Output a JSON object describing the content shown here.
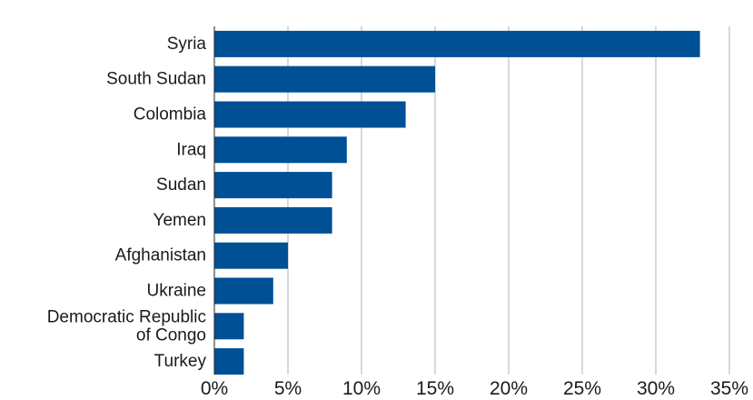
{
  "chart_data": {
    "type": "bar",
    "orientation": "horizontal",
    "categories": [
      "Syria",
      "South Sudan",
      "Colombia",
      "Iraq",
      "Sudan",
      "Yemen",
      "Afghanistan",
      "Ukraine",
      "Democratic Republic of Congo",
      "Turkey"
    ],
    "category_label_lines": [
      [
        "Syria"
      ],
      [
        "South Sudan"
      ],
      [
        "Colombia"
      ],
      [
        "Iraq"
      ],
      [
        "Sudan"
      ],
      [
        "Yemen"
      ],
      [
        "Afghanistan"
      ],
      [
        "Ukraine"
      ],
      [
        "Democratic Republic",
        "of Congo"
      ],
      [
        "Turkey"
      ]
    ],
    "values": [
      33,
      15,
      13,
      9,
      8,
      8,
      5,
      4,
      2,
      2
    ],
    "xlim": [
      0,
      35
    ],
    "xticks": [
      0,
      5,
      10,
      15,
      20,
      25,
      30,
      35
    ],
    "xtick_labels": [
      "0%",
      "5%",
      "10%",
      "15%",
      "20%",
      "25%",
      "30%",
      "35%"
    ],
    "title": "",
    "xlabel": "",
    "ylabel": "",
    "grid": "vertical",
    "legend": "none",
    "bar_color": "#005096"
  }
}
